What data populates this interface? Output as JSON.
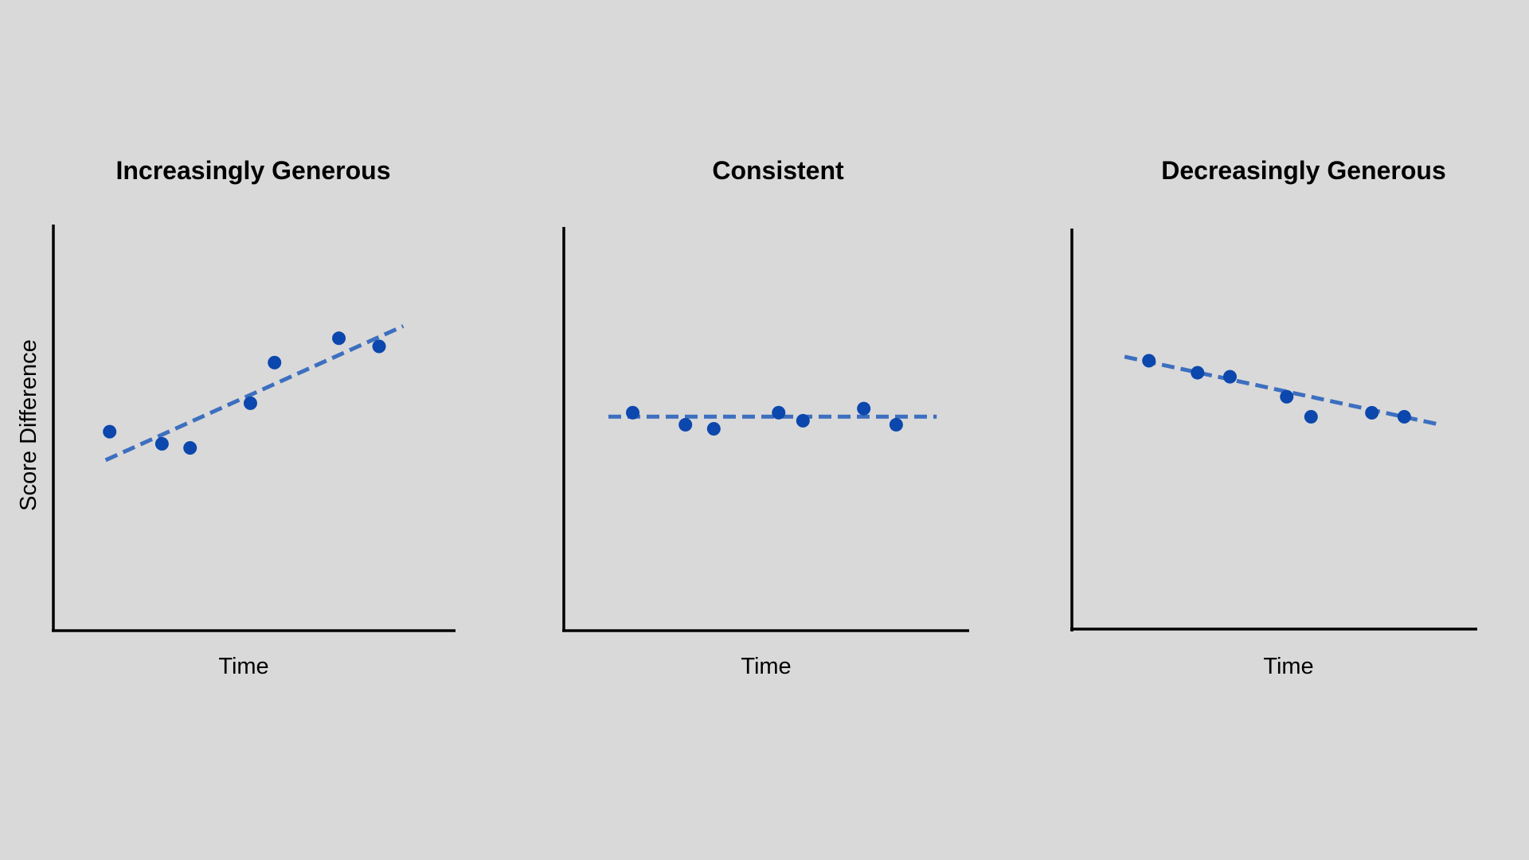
{
  "colors": {
    "background": "#d9d9d9",
    "axis": "#000000",
    "point": "#0b47ad",
    "trend": "#3d6fbf"
  },
  "chart_data": [
    {
      "type": "scatter",
      "title": "Increasingly Generous",
      "xlabel": "Time",
      "ylabel": "Score Difference",
      "xlim": [
        0,
        10
      ],
      "ylim": [
        0,
        10
      ],
      "grid": false,
      "points": [
        {
          "x": 1.4,
          "y": 4.9
        },
        {
          "x": 2.7,
          "y": 4.6
        },
        {
          "x": 3.4,
          "y": 4.5
        },
        {
          "x": 4.9,
          "y": 5.6
        },
        {
          "x": 5.5,
          "y": 6.6
        },
        {
          "x": 7.1,
          "y": 7.2
        },
        {
          "x": 8.1,
          "y": 7.0
        }
      ],
      "trendline": {
        "x": [
          1.3,
          8.7
        ],
        "y": [
          4.2,
          7.5
        ],
        "style": "dashed"
      }
    },
    {
      "type": "scatter",
      "title": "Consistent",
      "xlabel": "Time",
      "ylabel": "",
      "xlim": [
        0,
        10
      ],
      "ylim": [
        0,
        10
      ],
      "grid": false,
      "points": [
        {
          "x": 1.7,
          "y": 5.4
        },
        {
          "x": 3.0,
          "y": 5.1
        },
        {
          "x": 3.7,
          "y": 5.0
        },
        {
          "x": 5.3,
          "y": 5.4
        },
        {
          "x": 5.9,
          "y": 5.2
        },
        {
          "x": 7.4,
          "y": 5.5
        },
        {
          "x": 8.2,
          "y": 5.1
        }
      ],
      "trendline": {
        "x": [
          1.1,
          9.2
        ],
        "y": [
          5.3,
          5.3
        ],
        "style": "dashed"
      }
    },
    {
      "type": "scatter",
      "title": "Decreasingly Generous",
      "xlabel": "Time",
      "ylabel": "",
      "xlim": [
        0,
        10
      ],
      "ylim": [
        0,
        10
      ],
      "grid": false,
      "points": [
        {
          "x": 1.9,
          "y": 6.7
        },
        {
          "x": 3.1,
          "y": 6.4
        },
        {
          "x": 3.9,
          "y": 6.3
        },
        {
          "x": 5.3,
          "y": 5.8
        },
        {
          "x": 5.9,
          "y": 5.3
        },
        {
          "x": 7.4,
          "y": 5.4
        },
        {
          "x": 8.2,
          "y": 5.3
        }
      ],
      "trendline": {
        "x": [
          1.3,
          9.1
        ],
        "y": [
          6.8,
          5.1
        ],
        "style": "dashed"
      }
    }
  ]
}
